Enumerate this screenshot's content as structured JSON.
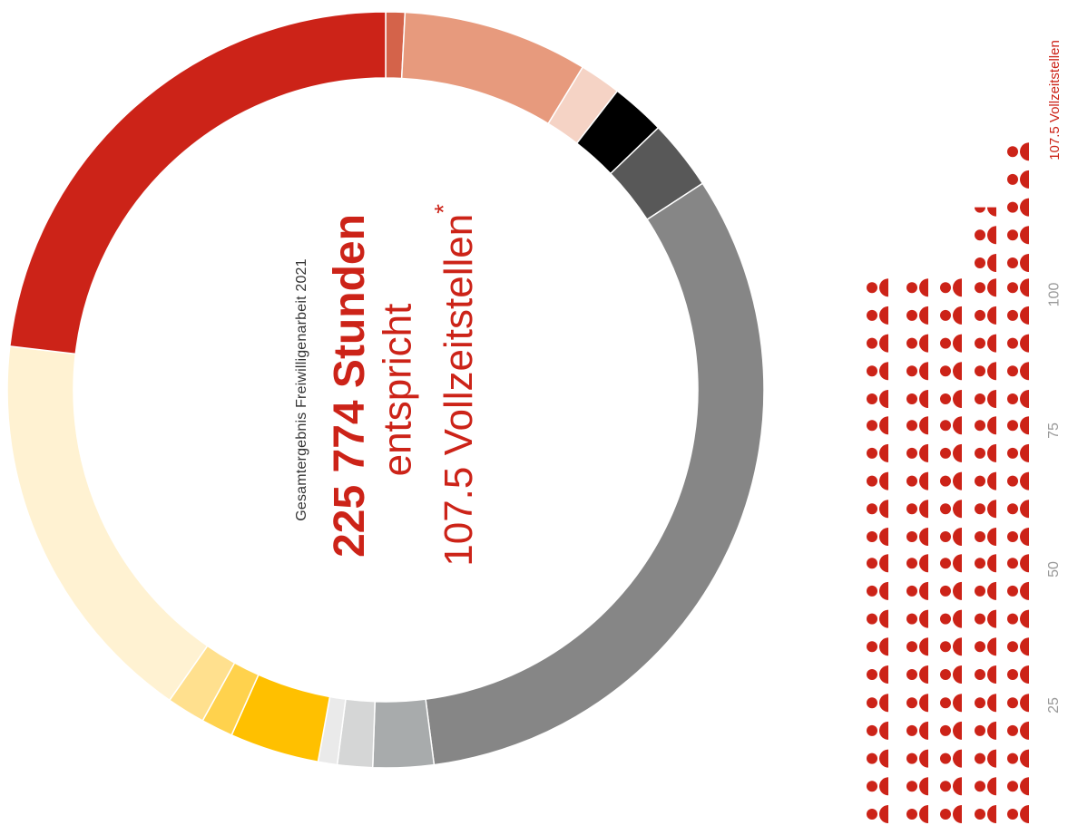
{
  "chart_data": {
    "type": "pie",
    "subtitle": "Gesamtergebnis Freiwilligenarbeit 2021",
    "total_label": "225 774 Stunden",
    "equivalent_label": "entspricht",
    "fte_label": "107.5 Vollzeitstellen",
    "fte_asterisk": "*",
    "segments": [
      {
        "value": 0.6,
        "color": "#d4634a"
      },
      {
        "value": 5.8,
        "color": "#e79a7d"
      },
      {
        "value": 1.3,
        "color": "#f5d3c5"
      },
      {
        "value": 1.7,
        "color": "#000000"
      },
      {
        "value": 2.2,
        "color": "#585858"
      },
      {
        "value": 23.6,
        "color": "#868686"
      },
      {
        "value": 1.9,
        "color": "#a8abac"
      },
      {
        "value": 1.1,
        "color": "#d5d6d6"
      },
      {
        "value": 0.6,
        "color": "#eaeaea"
      },
      {
        "value": 2.8,
        "color": "#ffc000"
      },
      {
        "value": 1.0,
        "color": "#ffd24d"
      },
      {
        "value": 1.2,
        "color": "#ffe08e"
      },
      {
        "value": 12.6,
        "color": "#fff2d2"
      },
      {
        "value": 17.0,
        "color": "#cc2318"
      }
    ],
    "people_chart": {
      "type": "pictogram",
      "value": 107.5,
      "icon_color": "#cc2318",
      "group_size": 25,
      "ticks": [
        "25",
        "50",
        "75",
        "100"
      ],
      "value_label": "107.5 Vollzeitstellen"
    }
  }
}
